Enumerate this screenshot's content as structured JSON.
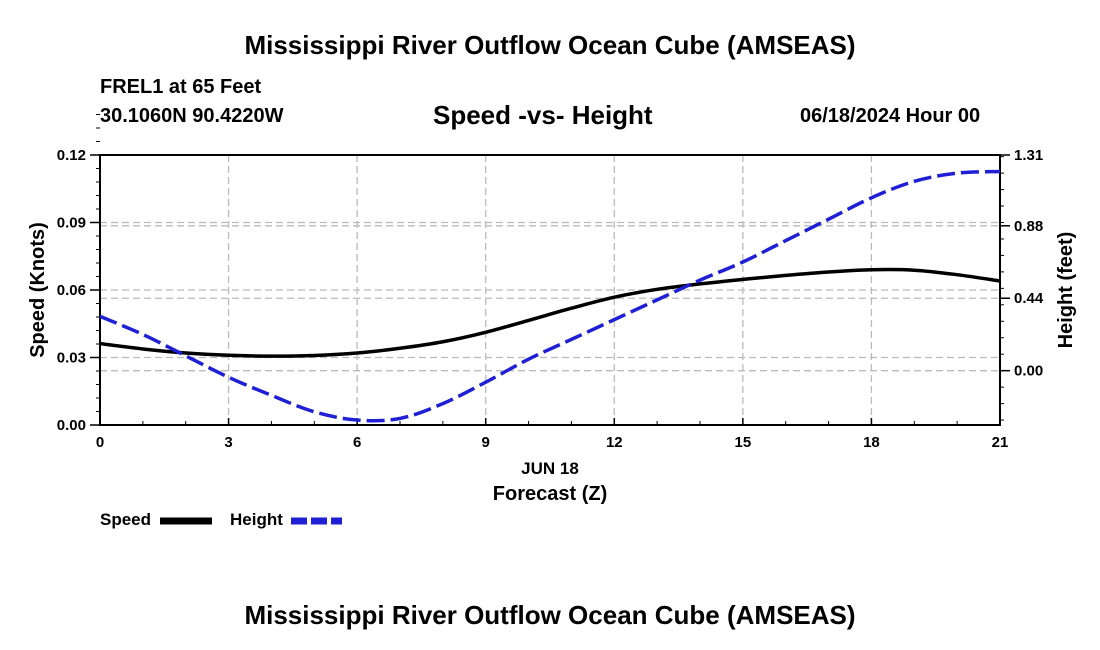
{
  "header": {
    "title": "Mississippi River Outflow Ocean Cube (AMSEAS)",
    "station": "FREL1 at 65 Feet",
    "coords": "30.1060N  90.4220W",
    "subtitle": "Speed -vs- Height",
    "datetime": "06/18/2024 Hour 00"
  },
  "footer": {
    "title": "Mississippi River Outflow Ocean Cube (AMSEAS)"
  },
  "chart_data": {
    "type": "line",
    "title": "Speed -vs- Height",
    "xlabel": "Forecast (Z)",
    "date_label": "JUN 18",
    "ylabel": "Speed (Knots)",
    "y2label": "Height (feet)",
    "xlim": [
      0,
      21
    ],
    "ylim": [
      0,
      0.12
    ],
    "y2lim": [
      -0.33,
      1.31
    ],
    "grid": true,
    "x_ticks": [
      "0",
      "3",
      "6",
      "9",
      "12",
      "15",
      "18",
      "21"
    ],
    "y_ticks": [
      "0.00",
      "0.03",
      "0.06",
      "0.09",
      "0.12"
    ],
    "y2_ticks": [
      "0.00",
      "0.44",
      "0.88",
      "1.31"
    ],
    "x_tick_values": [
      0,
      3,
      6,
      9,
      12,
      15,
      18,
      21
    ],
    "y_tick_values": [
      0,
      0.03,
      0.06,
      0.09,
      0.12
    ],
    "y2_tick_values": [
      0,
      0.44,
      0.88,
      1.31
    ],
    "series": [
      {
        "name": "Speed",
        "axis": "left",
        "color": "#000000",
        "style": "solid",
        "x": [
          0,
          1,
          2,
          3,
          4,
          5,
          6,
          7,
          8,
          9,
          10,
          11,
          12,
          13,
          14,
          15,
          16,
          17,
          18,
          19,
          20,
          21
        ],
        "values": [
          0.0362,
          0.0338,
          0.032,
          0.031,
          0.0306,
          0.0309,
          0.032,
          0.0341,
          0.037,
          0.0412,
          0.0465,
          0.0519,
          0.0568,
          0.0603,
          0.0627,
          0.0647,
          0.0665,
          0.068,
          0.069,
          0.0688,
          0.0668,
          0.064
        ]
      },
      {
        "name": "Height",
        "axis": "right",
        "color": "#1f1fd6",
        "style": "dashed",
        "x": [
          0,
          1,
          2,
          3,
          4,
          5,
          6,
          7,
          8,
          9,
          10,
          11,
          12,
          13,
          14,
          15,
          16,
          17,
          18,
          19,
          20,
          21
        ],
        "values": [
          0.33,
          0.22,
          0.09,
          -0.04,
          -0.15,
          -0.25,
          -0.3,
          -0.29,
          -0.2,
          -0.07,
          0.07,
          0.19,
          0.31,
          0.43,
          0.55,
          0.66,
          0.79,
          0.92,
          1.05,
          1.15,
          1.2,
          1.21
        ]
      }
    ],
    "legend": {
      "placement": "bottom-left",
      "entries": [
        "Speed",
        "Height"
      ]
    }
  }
}
